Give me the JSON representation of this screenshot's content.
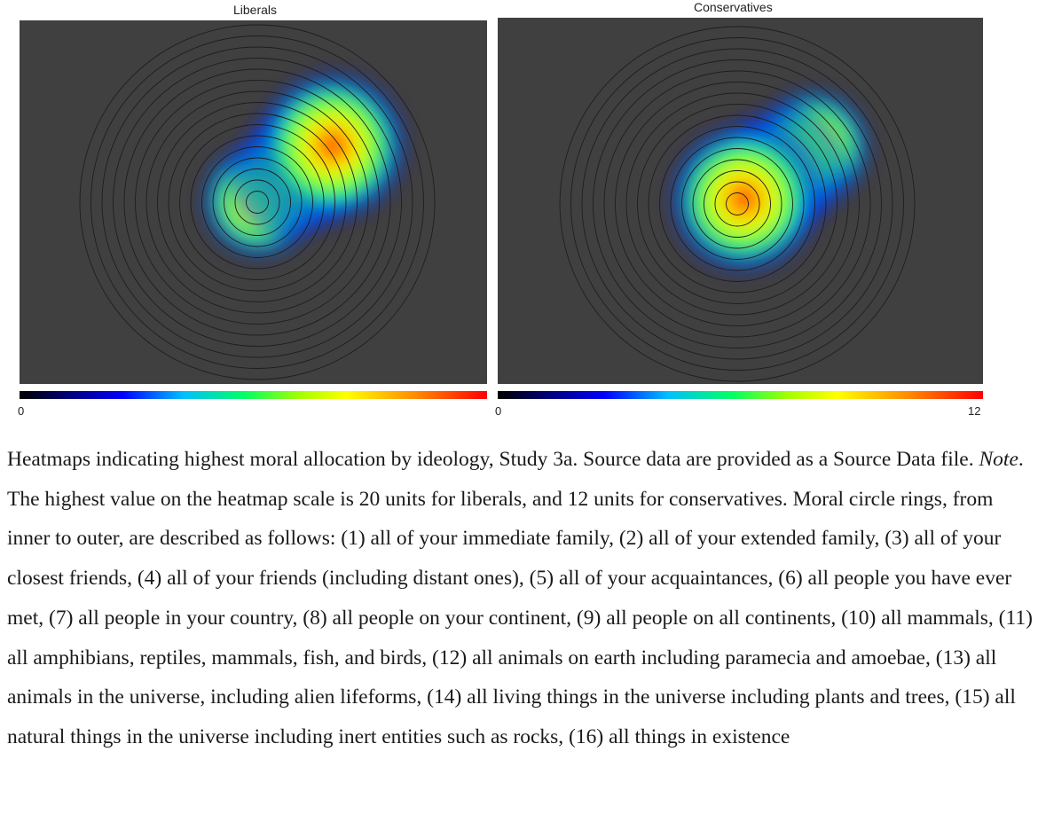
{
  "chart_data": [
    {
      "type": "heatmap",
      "title": "Liberals",
      "colorbar": {
        "min": "0",
        "max_label": "",
        "max_value": 20
      },
      "rings": 16,
      "hotspots": [
        {
          "ring_position": 8.5,
          "intensity": 1.0
        },
        {
          "ring_position": 6.0,
          "intensity": 0.75
        },
        {
          "ring_position": 3.5,
          "intensity": 0.55
        },
        {
          "ring_position": 0.3,
          "intensity": 0.5
        }
      ]
    },
    {
      "type": "heatmap",
      "title": "Conservatives",
      "colorbar": {
        "min": "0",
        "max_label": "12",
        "max_value": 12
      },
      "rings": 16,
      "hotspots": [
        {
          "ring_position": 0.8,
          "intensity": 1.0
        },
        {
          "ring_position": 3.0,
          "intensity": 0.72
        },
        {
          "ring_position": 5.5,
          "intensity": 0.6
        },
        {
          "ring_position": 8.5,
          "intensity": 0.5
        }
      ]
    }
  ],
  "caption": {
    "part1": "Heatmaps indicating highest moral allocation by ideology, Study 3a. Source data are provided as a Source Data file. ",
    "note": "Note",
    "part2": ". The highest value on the heatmap scale is 20 units for liberals, and 12 units for conservatives. Moral circle rings, from inner to outer, are described as follows: (1) all of your immediate family, (2) all of your extended family, (3) all of your closest friends, (4) all of your friends (including distant ones), (5) all of your acquaintances, (6) all people you have ever met, (7) all people in your country, (8) all people on your continent, (9) all people on all continents, (10) all mammals, (11) all amphibians, reptiles, mammals, fish, and birds, (12) all animals on earth including paramecia and amoebae, (13) all animals in the universe, including alien lifeforms, (14) all living things in the universe including plants and trees, (15) all natural things in the universe including inert entities such as rocks, (16) all things in existence"
  }
}
